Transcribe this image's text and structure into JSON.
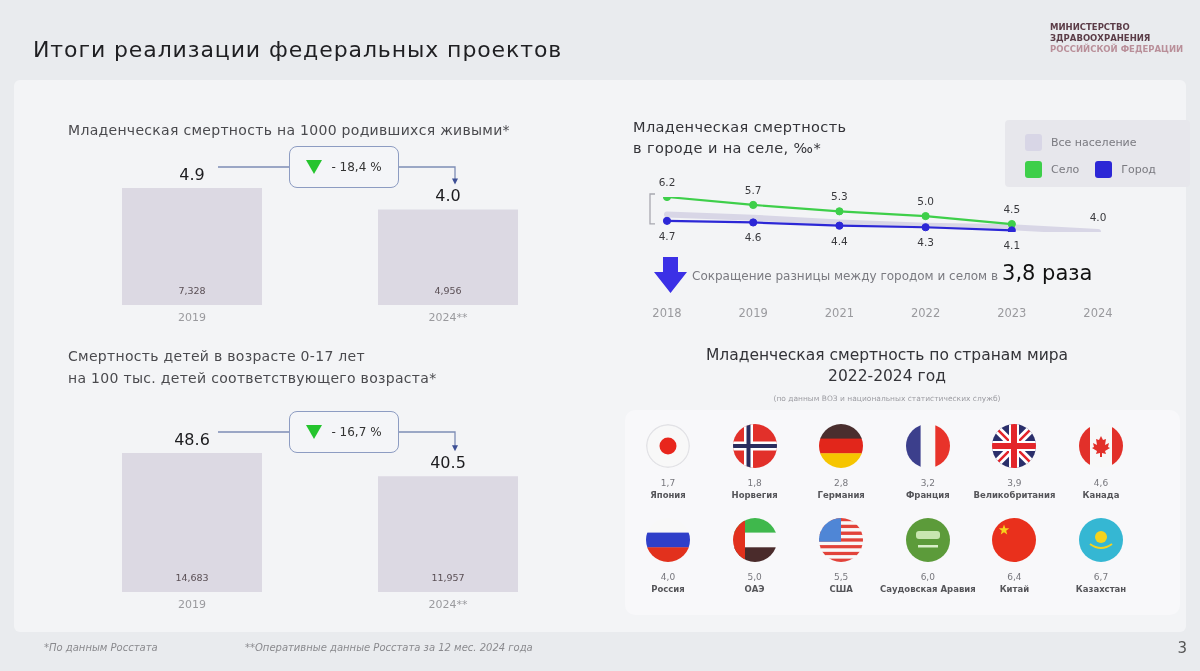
{
  "chart_data": [
    {
      "type": "other",
      "title": "Итоги реализации федеральных проектов",
      "annotations": [
        "МИНИСТЕРСТВО\nЗДРАВООХРАНЕНИЯ\nРОССИЙСКОЙ ФЕДЕРАЦИИ"
      ]
    },
    {
      "type": "bar",
      "title": "Младенческая смертность на 1000 родившихся живыми*",
      "categories": [
        "2019",
        "2024**"
      ],
      "values": [
        4.9,
        4.0
      ],
      "value_labels": [
        "4.9",
        "4.0"
      ],
      "color": "#dcd9e3",
      "tick_labels": "x",
      "annotations": [
        "- 18,4 %",
        "7,328",
        "4,956"
      ]
    },
    {
      "type": "line",
      "title": "Младенческая смертность\nв городе и на селе, ‰*",
      "categories": [
        "2018",
        "2019",
        "2021",
        "2022",
        "2023",
        "2024"
      ],
      "series": [
        {
          "name": "Все население",
          "color": "#d8d6e6",
          "marker": "none",
          "values": [
            5.1,
            4.9,
            4.6,
            4.4,
            4.3,
            4.0
          ],
          "value_labels": [
            null,
            null,
            null,
            null,
            null,
            "4.0"
          ]
        },
        {
          "name": "Село",
          "color": "#3ecf4a",
          "values": [
            6.2,
            5.7,
            5.3,
            5.0,
            4.5,
            null
          ],
          "value_labels": [
            "6.2",
            "5.7",
            "5.3",
            "5.0",
            "4.5",
            null
          ]
        },
        {
          "name": "Город",
          "color": "#2c27d6",
          "values": [
            4.7,
            4.6,
            4.4,
            4.3,
            4.1,
            null
          ],
          "value_labels": [
            "4.7",
            "4.6",
            "4.4",
            "4.3",
            "4.1",
            null
          ]
        }
      ],
      "marker": "circle",
      "legend": "top right",
      "tick_labels": "x",
      "annotations": [
        "Сокращение разницы между городом и селом в",
        "3,8 раза"
      ]
    },
    {
      "type": "bar",
      "title": "Смертность детей в возрасте 0-17 лет\nна 100 тыс. детей соответствующего возраста*",
      "categories": [
        "2019",
        "2024**"
      ],
      "values": [
        48.6,
        40.5
      ],
      "value_labels": [
        "48.6",
        "40.5"
      ],
      "color": "#dcd9e3",
      "tick_labels": "x",
      "annotations": [
        "- 16,7 %",
        "14,683",
        "11,957"
      ]
    },
    {
      "type": "other",
      "title": "Младенческая смертность по странам мира\n2022-2024 год",
      "subtitle": "(по данным ВОЗ и национальных статистических служб)",
      "categories": [
        "Япония",
        "Норвегия",
        "Германия",
        "Франция",
        "Великобритания",
        "Канада",
        "Россия",
        "ОАЭ",
        "США",
        "Саудовская Аравия",
        "Китай",
        "Казахстан"
      ],
      "values": [
        1.7,
        1.8,
        2.8,
        3.2,
        3.9,
        4.6,
        4.0,
        5.0,
        5.5,
        6.0,
        6.4,
        6.7
      ],
      "value_labels": [
        "1,7",
        "1,8",
        "2,8",
        "3,2",
        "3,9",
        "4,6",
        "4,0",
        "5,0",
        "5,5",
        "6,0",
        "6,4",
        "6,7"
      ]
    },
    {
      "type": "other",
      "annotations": [
        "*По данным Росстата",
        "**Оперативные данные Росстата за 12 мес. 2024 года",
        "3"
      ]
    }
  ]
}
